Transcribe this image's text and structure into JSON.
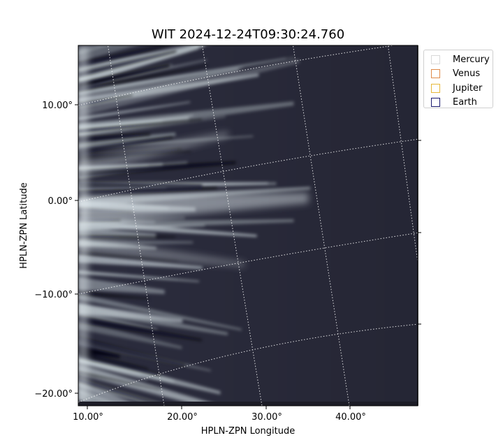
{
  "title": "WIT 2024-12-24T09:30:24.760",
  "axes": {
    "xlabel": "HPLN-ZPN Longitude",
    "ylabel": "HPLN-ZPN Latitude",
    "x_ticks": [
      "10.00°",
      "20.00°",
      "30.00°",
      "40.00°"
    ],
    "y_ticks": [
      "10.00°",
      "0.00°",
      "−10.00°",
      "−20.00°"
    ]
  },
  "legend": {
    "items": [
      {
        "label": "Mercury",
        "color": "#d9d9d9"
      },
      {
        "label": "Venus",
        "color": "#e08a4a"
      },
      {
        "label": "Jupiter",
        "color": "#e6b83a"
      },
      {
        "label": "Earth",
        "color": "#1a1a6e"
      }
    ]
  },
  "colors": {
    "background": "#2c2d3e",
    "streamer": "#c8d3d8",
    "grid": "#ffffff"
  }
}
